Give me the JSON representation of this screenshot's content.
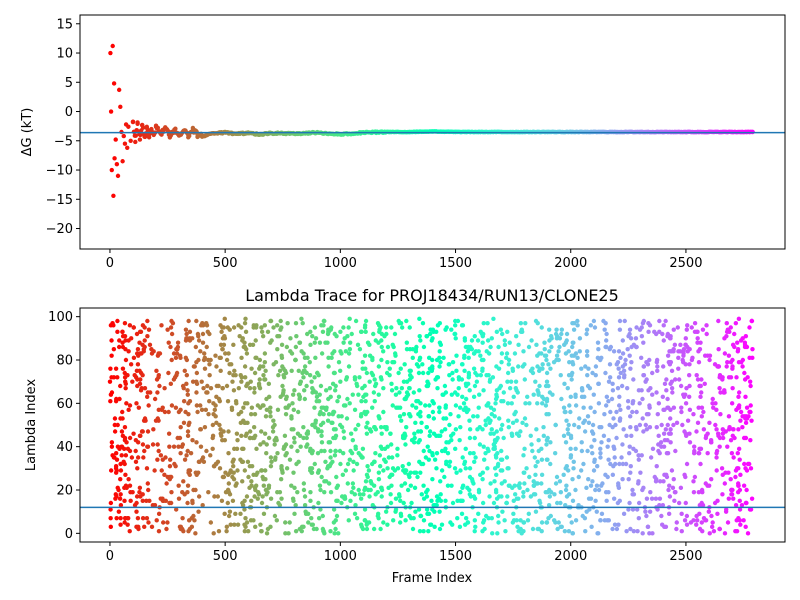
{
  "chart_data": [
    {
      "type": "scatter",
      "title": "",
      "xlabel": "",
      "ylabel": "ΔG (kT)",
      "xlim": [
        -130,
        2930
      ],
      "ylim": [
        -23.5,
        16.5
      ],
      "xticks": [
        0,
        500,
        1000,
        1500,
        2000,
        2500
      ],
      "xtick_labels": [
        "0",
        "500",
        "1000",
        "1500",
        "2000",
        "2500"
      ],
      "yticks": [
        -20,
        -15,
        -10,
        -5,
        0,
        5,
        10,
        15
      ],
      "ytick_labels": [
        "−20",
        "−15",
        "−10",
        "−5",
        "0",
        "5",
        "10",
        "15"
      ],
      "hline": -3.6,
      "hline_color": "#1f77b4",
      "colormap": "rainbow (reversed: red at frame 0 → violet at frame ~2800)",
      "series": [
        {
          "x": [
            2,
            5,
            8,
            12,
            15,
            18,
            20,
            25,
            30,
            35,
            40,
            45,
            50,
            55,
            60,
            65,
            70,
            75,
            80,
            90,
            100,
            110,
            120,
            130,
            140,
            150,
            160,
            170,
            180,
            190,
            200,
            220,
            240,
            260,
            280,
            300,
            320,
            340,
            360,
            380,
            400,
            450,
            500,
            550,
            600,
            650,
            700,
            800,
            900,
            1000,
            1100,
            1200,
            1300,
            1400,
            1500,
            1600,
            1700,
            1800,
            1900,
            2000,
            2100,
            2200,
            2300,
            2400,
            2500,
            2600,
            2700,
            2790
          ],
          "y": [
            10,
            0,
            -10,
            11.2,
            -14.4,
            4.8,
            -8,
            -4.8,
            -9,
            -11,
            3.7,
            0.8,
            -3.5,
            -8.5,
            -4.2,
            -5.5,
            -2.2,
            -6.2,
            -2.6,
            -5,
            -1.8,
            -5.2,
            -2.1,
            -4.8,
            -2.3,
            -4.3,
            -2.8,
            -4.4,
            -3.0,
            -4.0,
            -2.6,
            -3.7,
            -2.7,
            -4.0,
            -3.1,
            -3.9,
            -3.3,
            -4.0,
            -3.2,
            -3.9,
            -4.3,
            -3.7,
            -3.6,
            -3.8,
            -3.7,
            -3.9,
            -3.7,
            -3.8,
            -3.6,
            -3.9,
            -3.6,
            -3.5,
            -3.5,
            -3.4,
            -3.5,
            -3.5,
            -3.5,
            -3.5,
            -3.5,
            -3.5,
            -3.5,
            -3.5,
            -3.5,
            -3.5,
            -3.5,
            -3.5,
            -3.5,
            -3.5
          ]
        }
      ]
    },
    {
      "type": "scatter",
      "title": "Lambda Trace for PROJ18434/RUN13/CLONE25",
      "xlabel": "Frame Index",
      "ylabel": "Lambda Index",
      "xlim": [
        -130,
        2930
      ],
      "ylim": [
        -4,
        104
      ],
      "xticks": [
        0,
        500,
        1000,
        1500,
        2000,
        2500
      ],
      "xtick_labels": [
        "0",
        "500",
        "1000",
        "1500",
        "2000",
        "2500"
      ],
      "yticks": [
        0,
        20,
        40,
        60,
        80,
        100
      ],
      "ytick_labels": [
        "0",
        "20",
        "40",
        "60",
        "80",
        "100"
      ],
      "hline": 12,
      "hline_color": "#1f77b4",
      "colormap": "rainbow (reversed: red at frame 0 → violet at frame ~2800)",
      "frame_range": [
        0,
        2790
      ],
      "lambda_range": [
        0,
        99
      ],
      "n_points": 2800
    }
  ]
}
